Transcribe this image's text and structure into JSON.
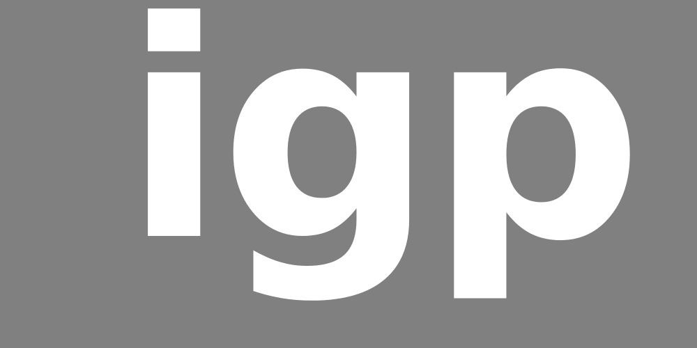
{
  "logo": {
    "text": "igp",
    "color": "#ffffff"
  },
  "background": {
    "color": "#808080"
  }
}
